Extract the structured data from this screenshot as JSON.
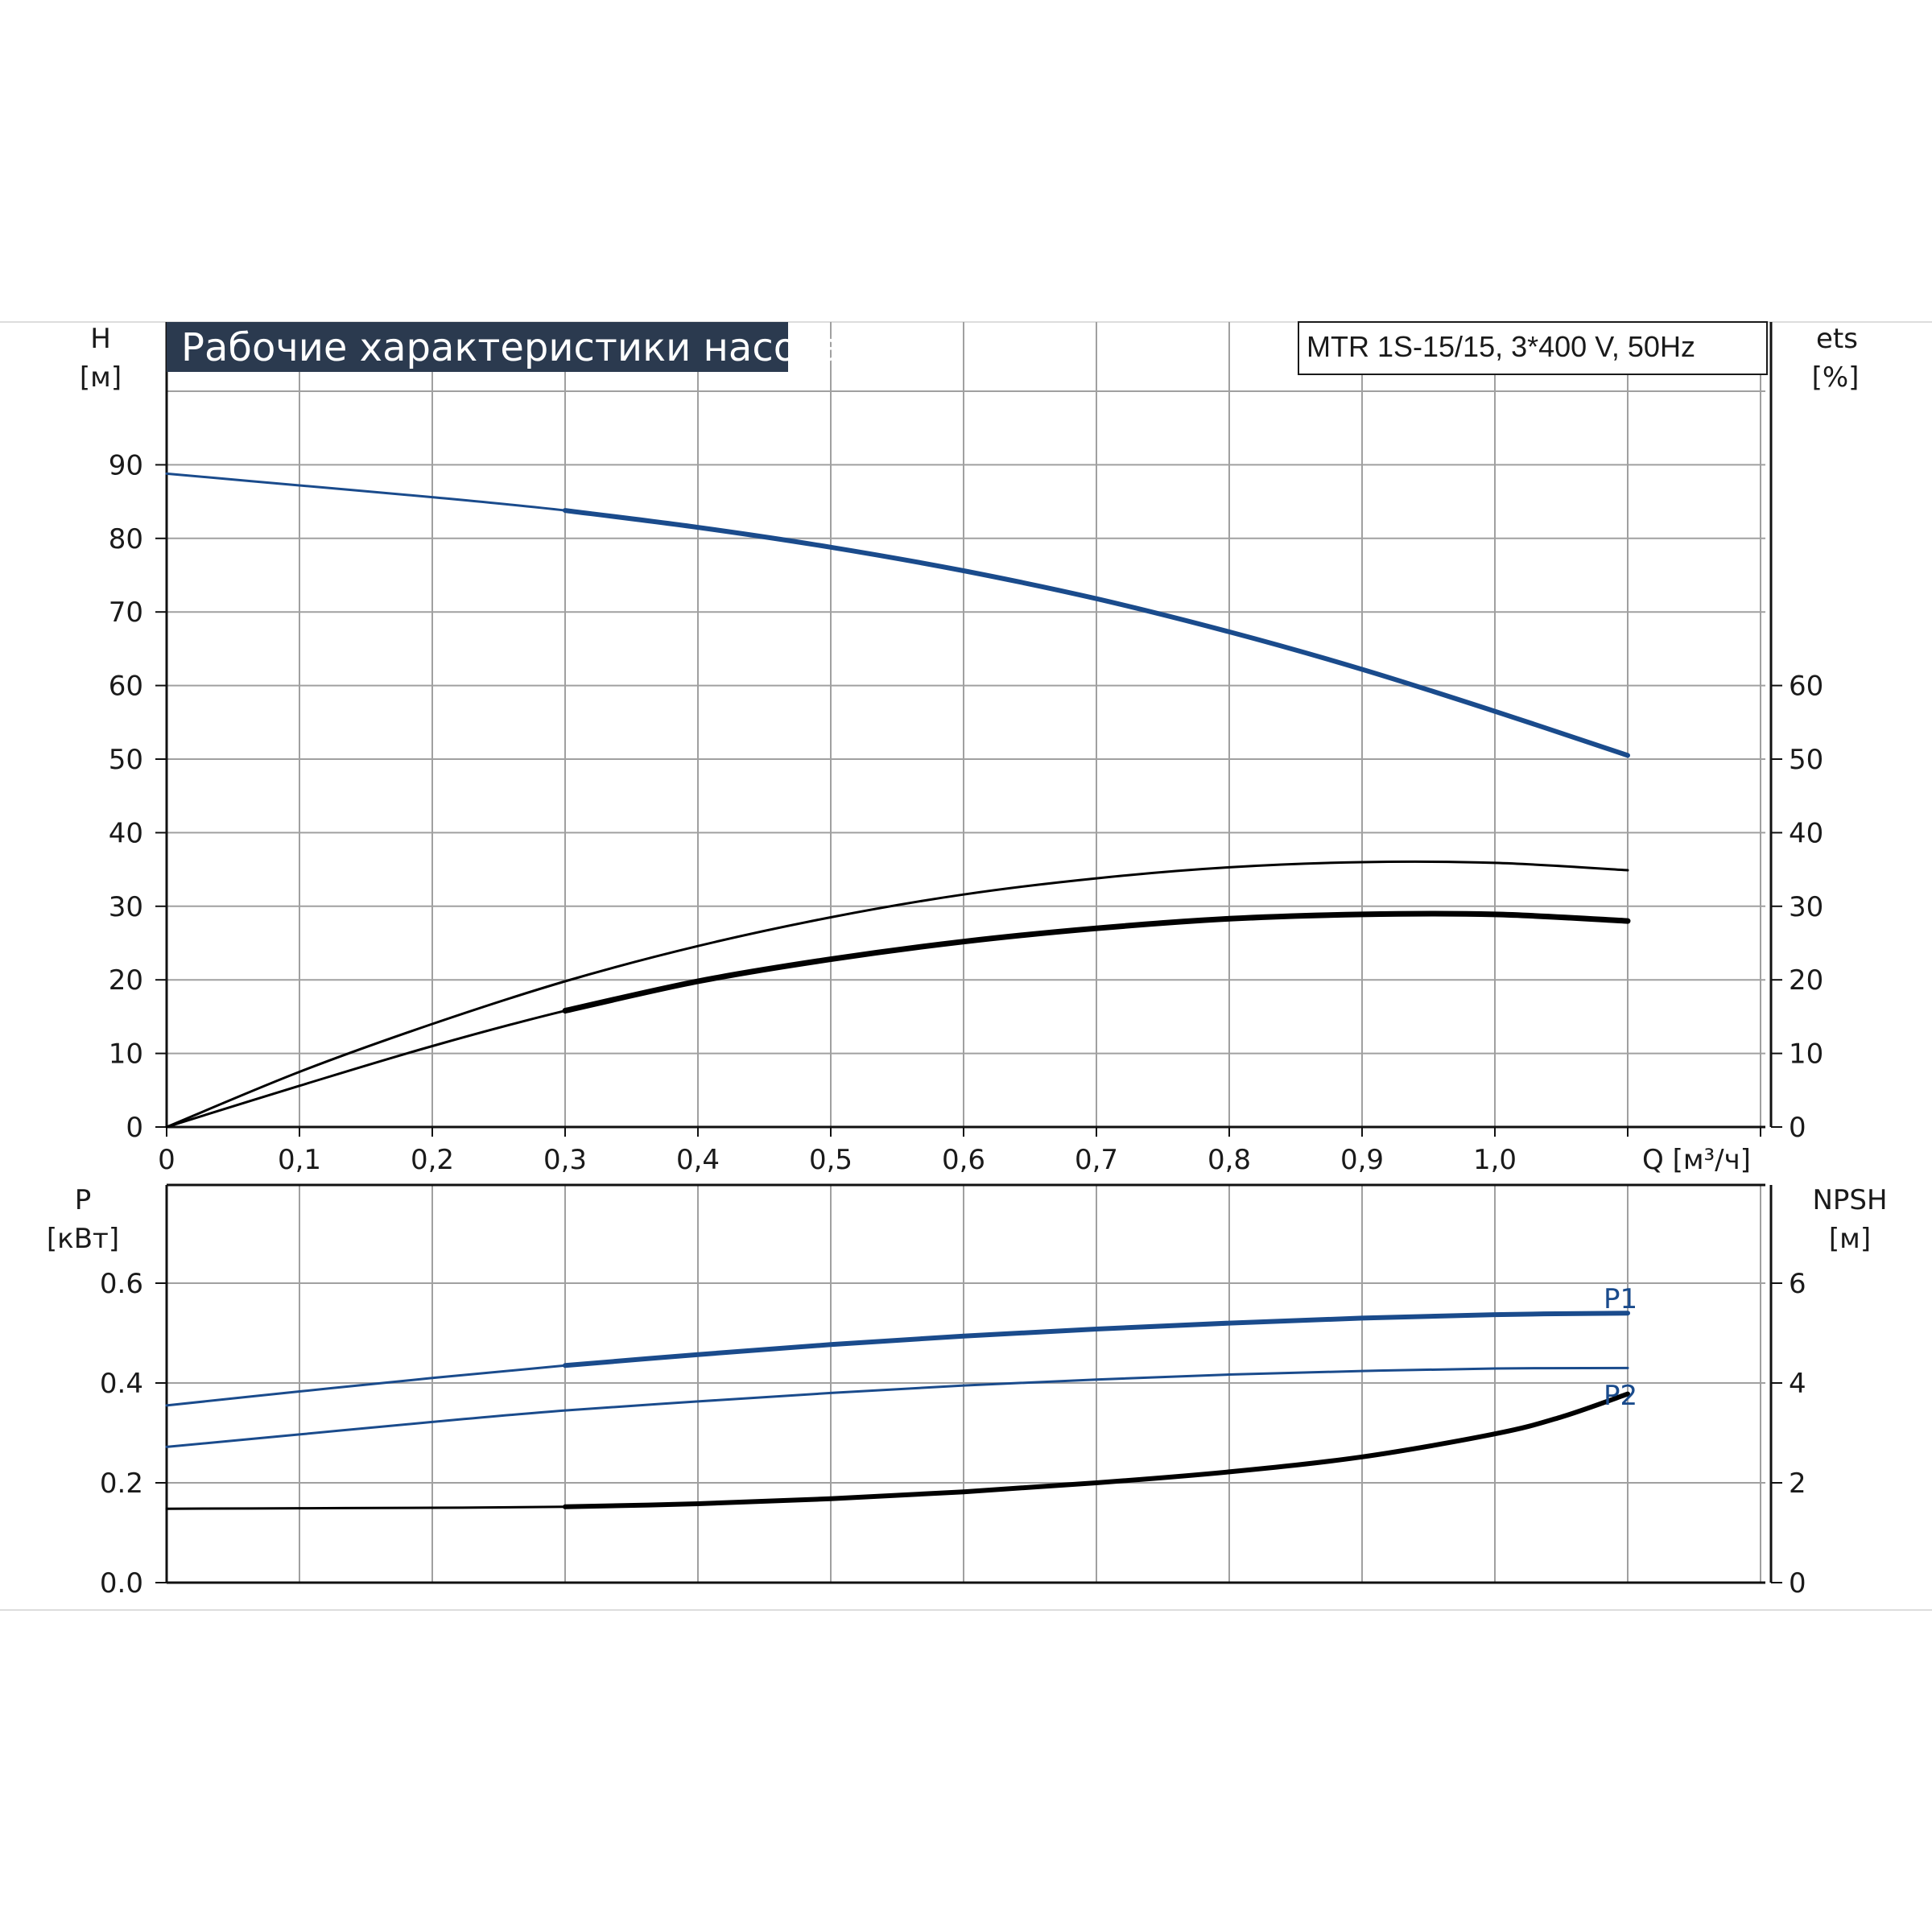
{
  "title": "Рабочие характеристики насоса",
  "model": "MTR 1S-15/15, 3*400 V, 50Hz",
  "colors": {
    "blue": "#1a4b8c",
    "black": "#000000",
    "grid": "#a0a0a0",
    "title_bg": "#2b3a4f"
  },
  "chart_data": [
    {
      "type": "line",
      "xlabel": "Q [м³/ч]",
      "ylabel": [
        "H",
        "[м]"
      ],
      "y2label": [
        "ets",
        "[%]"
      ],
      "xlim": [
        0,
        1.2
      ],
      "ylim": [
        0,
        100
      ],
      "y2lim": [
        0,
        100
      ],
      "x_ticks": [
        "0",
        "0,1",
        "0,2",
        "0,3",
        "0,4",
        "0,5",
        "0,6",
        "0,7",
        "0,8",
        "0,9",
        "1,0"
      ],
      "y_ticks": [
        "0",
        "10",
        "20",
        "30",
        "40",
        "50",
        "60",
        "70",
        "80",
        "90"
      ],
      "y2_ticks": [
        "0",
        "10",
        "20",
        "30",
        "40",
        "50",
        "60"
      ],
      "grid": true,
      "series": [
        {
          "id": "head",
          "color": "#1a4b8c",
          "axis": "left",
          "bold_from": 0.3,
          "x": [
            0,
            0.1,
            0.2,
            0.3,
            0.4,
            0.5,
            0.6,
            0.7,
            0.8,
            0.9,
            1.0,
            1.1
          ],
          "y": [
            88.8,
            87.2,
            85.6,
            83.8,
            81.5,
            78.8,
            75.6,
            71.8,
            67.3,
            62.2,
            56.5,
            50.5
          ]
        },
        {
          "id": "eta_1",
          "color": "#000000",
          "axis": "right",
          "bold_from": 2,
          "x": [
            0,
            0.1,
            0.2,
            0.3,
            0.4,
            0.5,
            0.6,
            0.7,
            0.8,
            0.9,
            1.0,
            1.1
          ],
          "y": [
            0,
            7.5,
            14,
            19.8,
            24.6,
            28.5,
            31.6,
            33.8,
            35.3,
            36.0,
            35.9,
            34.9
          ]
        },
        {
          "id": "eta_2",
          "color": "#000000",
          "axis": "right",
          "bold_from": 0.3,
          "x": [
            0,
            0.1,
            0.2,
            0.3,
            0.4,
            0.5,
            0.6,
            0.7,
            0.8,
            0.9,
            1.0,
            1.1
          ],
          "y": [
            0,
            5.6,
            11,
            15.8,
            19.8,
            22.8,
            25.2,
            27.0,
            28.3,
            28.9,
            28.9,
            28.0
          ]
        }
      ]
    },
    {
      "type": "line",
      "xlabel": "",
      "ylabel": [
        "P",
        "[кВт]"
      ],
      "y2label": [
        "NPSH",
        "[м]"
      ],
      "xlim": [
        0,
        1.2
      ],
      "ylim": [
        0,
        0.8
      ],
      "y2lim": [
        0,
        8
      ],
      "y_ticks": [
        "0.0",
        "0.2",
        "0.4",
        "0.6"
      ],
      "y2_ticks": [
        "0",
        "2",
        "4",
        "6"
      ],
      "grid": true,
      "series": [
        {
          "id": "p1",
          "name": "P1",
          "color": "#1a4b8c",
          "axis": "left",
          "bold_from": 0.3,
          "x": [
            0,
            0.1,
            0.2,
            0.3,
            0.4,
            0.5,
            0.6,
            0.7,
            0.8,
            0.9,
            1.0,
            1.1
          ],
          "y": [
            0.355,
            0.383,
            0.41,
            0.435,
            0.457,
            0.477,
            0.494,
            0.508,
            0.52,
            0.53,
            0.537,
            0.54
          ]
        },
        {
          "id": "p2",
          "name": "P2",
          "color": "#1a4b8c",
          "axis": "left",
          "bold_from": 2,
          "x": [
            0,
            0.1,
            0.2,
            0.3,
            0.4,
            0.5,
            0.6,
            0.7,
            0.8,
            0.9,
            1.0,
            1.1
          ],
          "y": [
            0.272,
            0.297,
            0.322,
            0.345,
            0.363,
            0.38,
            0.395,
            0.407,
            0.417,
            0.424,
            0.429,
            0.43
          ]
        },
        {
          "id": "npsh",
          "color": "#000000",
          "axis": "right",
          "bold_from": 0.3,
          "x": [
            0,
            0.1,
            0.2,
            0.3,
            0.4,
            0.5,
            0.6,
            0.7,
            0.8,
            0.9,
            1.0,
            1.05,
            1.1
          ],
          "y": [
            1.48,
            1.49,
            1.5,
            1.52,
            1.58,
            1.68,
            1.82,
            2.0,
            2.22,
            2.52,
            2.98,
            3.32,
            3.78
          ]
        }
      ]
    }
  ]
}
